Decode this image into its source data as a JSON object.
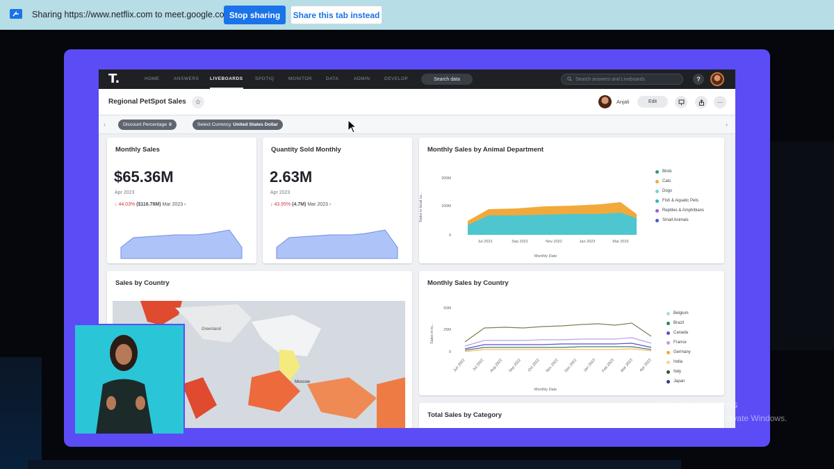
{
  "sharebar": {
    "text": "Sharing https://www.netflix.com to meet.google.com",
    "stop_label": "Stop sharing",
    "share_tab_label": "Share this tab instead"
  },
  "app": {
    "nav": {
      "items": [
        "HOME",
        "ANSWERS",
        "LIVEBOARDS",
        "SPOTIQ",
        "MONITOR",
        "DATA",
        "ADMIN",
        "DEVELOP"
      ],
      "active": "LIVEBOARDS",
      "search_data_label": "Search data",
      "search_placeholder": "Search answers and Liveboards",
      "help_label": "?"
    },
    "header": {
      "title": "Regional PetSpot Sales",
      "user_name": "Anjali",
      "edit_label": "Edit"
    },
    "filters": [
      {
        "label": "Discount Percentage",
        "value": "0"
      },
      {
        "label": "Select Currency",
        "value": "United States Dollar"
      }
    ],
    "cards": {
      "monthly_sales": {
        "title": "Monthly Sales",
        "value": "$65.36M",
        "date": "Apr 2023",
        "delta_pct": "44.03%",
        "delta_abs": "($116.78M)",
        "delta_ref": "Mar 2023"
      },
      "quantity_sold": {
        "title": "Quantity Sold Monthly",
        "value": "2.63M",
        "date": "Apr 2023",
        "delta_pct": "43.95%",
        "delta_abs": "(4.7M)",
        "delta_ref": "Mar 2023"
      },
      "animal_dept": {
        "title": "Monthly Sales by Animal Department",
        "ylabel": "Sales in local cu...",
        "xlabel": "Monthly Date",
        "yticks": [
          "200M",
          "100M",
          "0"
        ],
        "xticks": [
          "Jul 2022",
          "Sep 2022",
          "Nov 2022",
          "Jan 2023",
          "Mar 2023"
        ],
        "legend": [
          {
            "name": "Birds",
            "color": "#2e9c6a"
          },
          {
            "name": "Cats",
            "color": "#f2a93b"
          },
          {
            "name": "Dogs",
            "color": "#6fd3d6"
          },
          {
            "name": "Fish & Aquatic Pets",
            "color": "#2fb6c0"
          },
          {
            "name": "Reptiles & Amphibians",
            "color": "#9b5fd0"
          },
          {
            "name": "Small Animals",
            "color": "#3d5bd1"
          }
        ]
      },
      "sales_by_country": {
        "title": "Sales by Country",
        "map_labels": [
          "Greenland",
          "Moscow"
        ]
      },
      "monthly_by_country": {
        "title": "Monthly Sales by Country",
        "ylabel": "Sales in lo...",
        "xlabel": "Monthly Date",
        "yticks": [
          "50M",
          "25M",
          "0"
        ],
        "xticks": [
          "Jun 2022",
          "Jul 2022",
          "Aug 2022",
          "Sep 2022",
          "Oct 2022",
          "Nov 2022",
          "Dec 2022",
          "Jan 2023",
          "Feb 2023",
          "Mar 2023",
          "Apr 2023"
        ],
        "legend": [
          {
            "name": "Belgium",
            "color": "#a8e0c9"
          },
          {
            "name": "Brazil",
            "color": "#1f8a5a"
          },
          {
            "name": "Canada",
            "color": "#5b4ccf"
          },
          {
            "name": "France",
            "color": "#b3a3e6"
          },
          {
            "name": "Germany",
            "color": "#f2a93b"
          },
          {
            "name": "India",
            "color": "#f1d6a3"
          },
          {
            "name": "Italy",
            "color": "#1a5c46"
          },
          {
            "name": "Japan",
            "color": "#2d3a8c"
          }
        ]
      },
      "total_by_category": {
        "title": "Total Sales by Category"
      }
    }
  },
  "watermark": {
    "line1": "Activate Windows",
    "line2": "Go to Settings to activate Windows."
  }
}
